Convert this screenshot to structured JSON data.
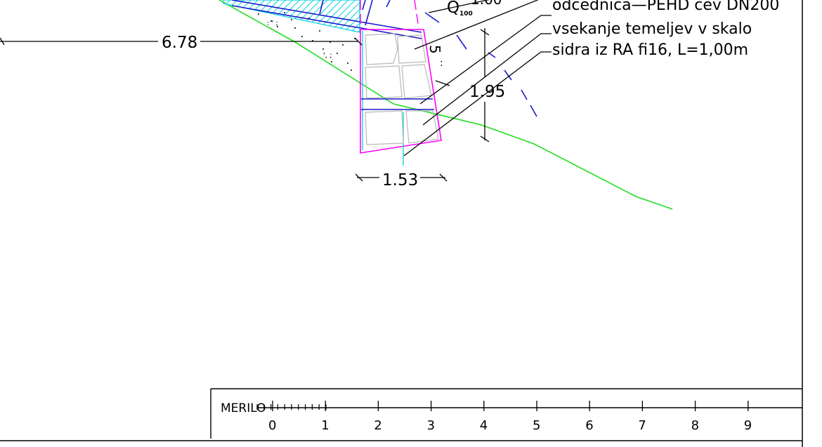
{
  "annotations": {
    "label_1": "odcednica—PEHD cev DN200",
    "label_2": "vsekanje temeljev v skalo",
    "label_3": "sidra iz RA fi16, L=1,00m",
    "water_level_symbol": "Q",
    "water_level_sub": "100",
    "water_level_value": "1.00",
    "cut_marker": "5"
  },
  "dimensions": {
    "horizontal_left": "6.78",
    "wall_height": "1.95",
    "wall_base_width": "1.53"
  },
  "scale_bar": {
    "label": "MERILO",
    "ticks": [
      "0",
      "1",
      "2",
      "3",
      "4",
      "5",
      "6",
      "7",
      "8",
      "9"
    ]
  },
  "colors": {
    "terrain": "#22dd22",
    "wall_outline": "#ff00ff",
    "drain_blue": "#1a1acc",
    "cyan_layer": "#00d0e0",
    "stone": "#b8b8b8",
    "ink": "#000000"
  }
}
